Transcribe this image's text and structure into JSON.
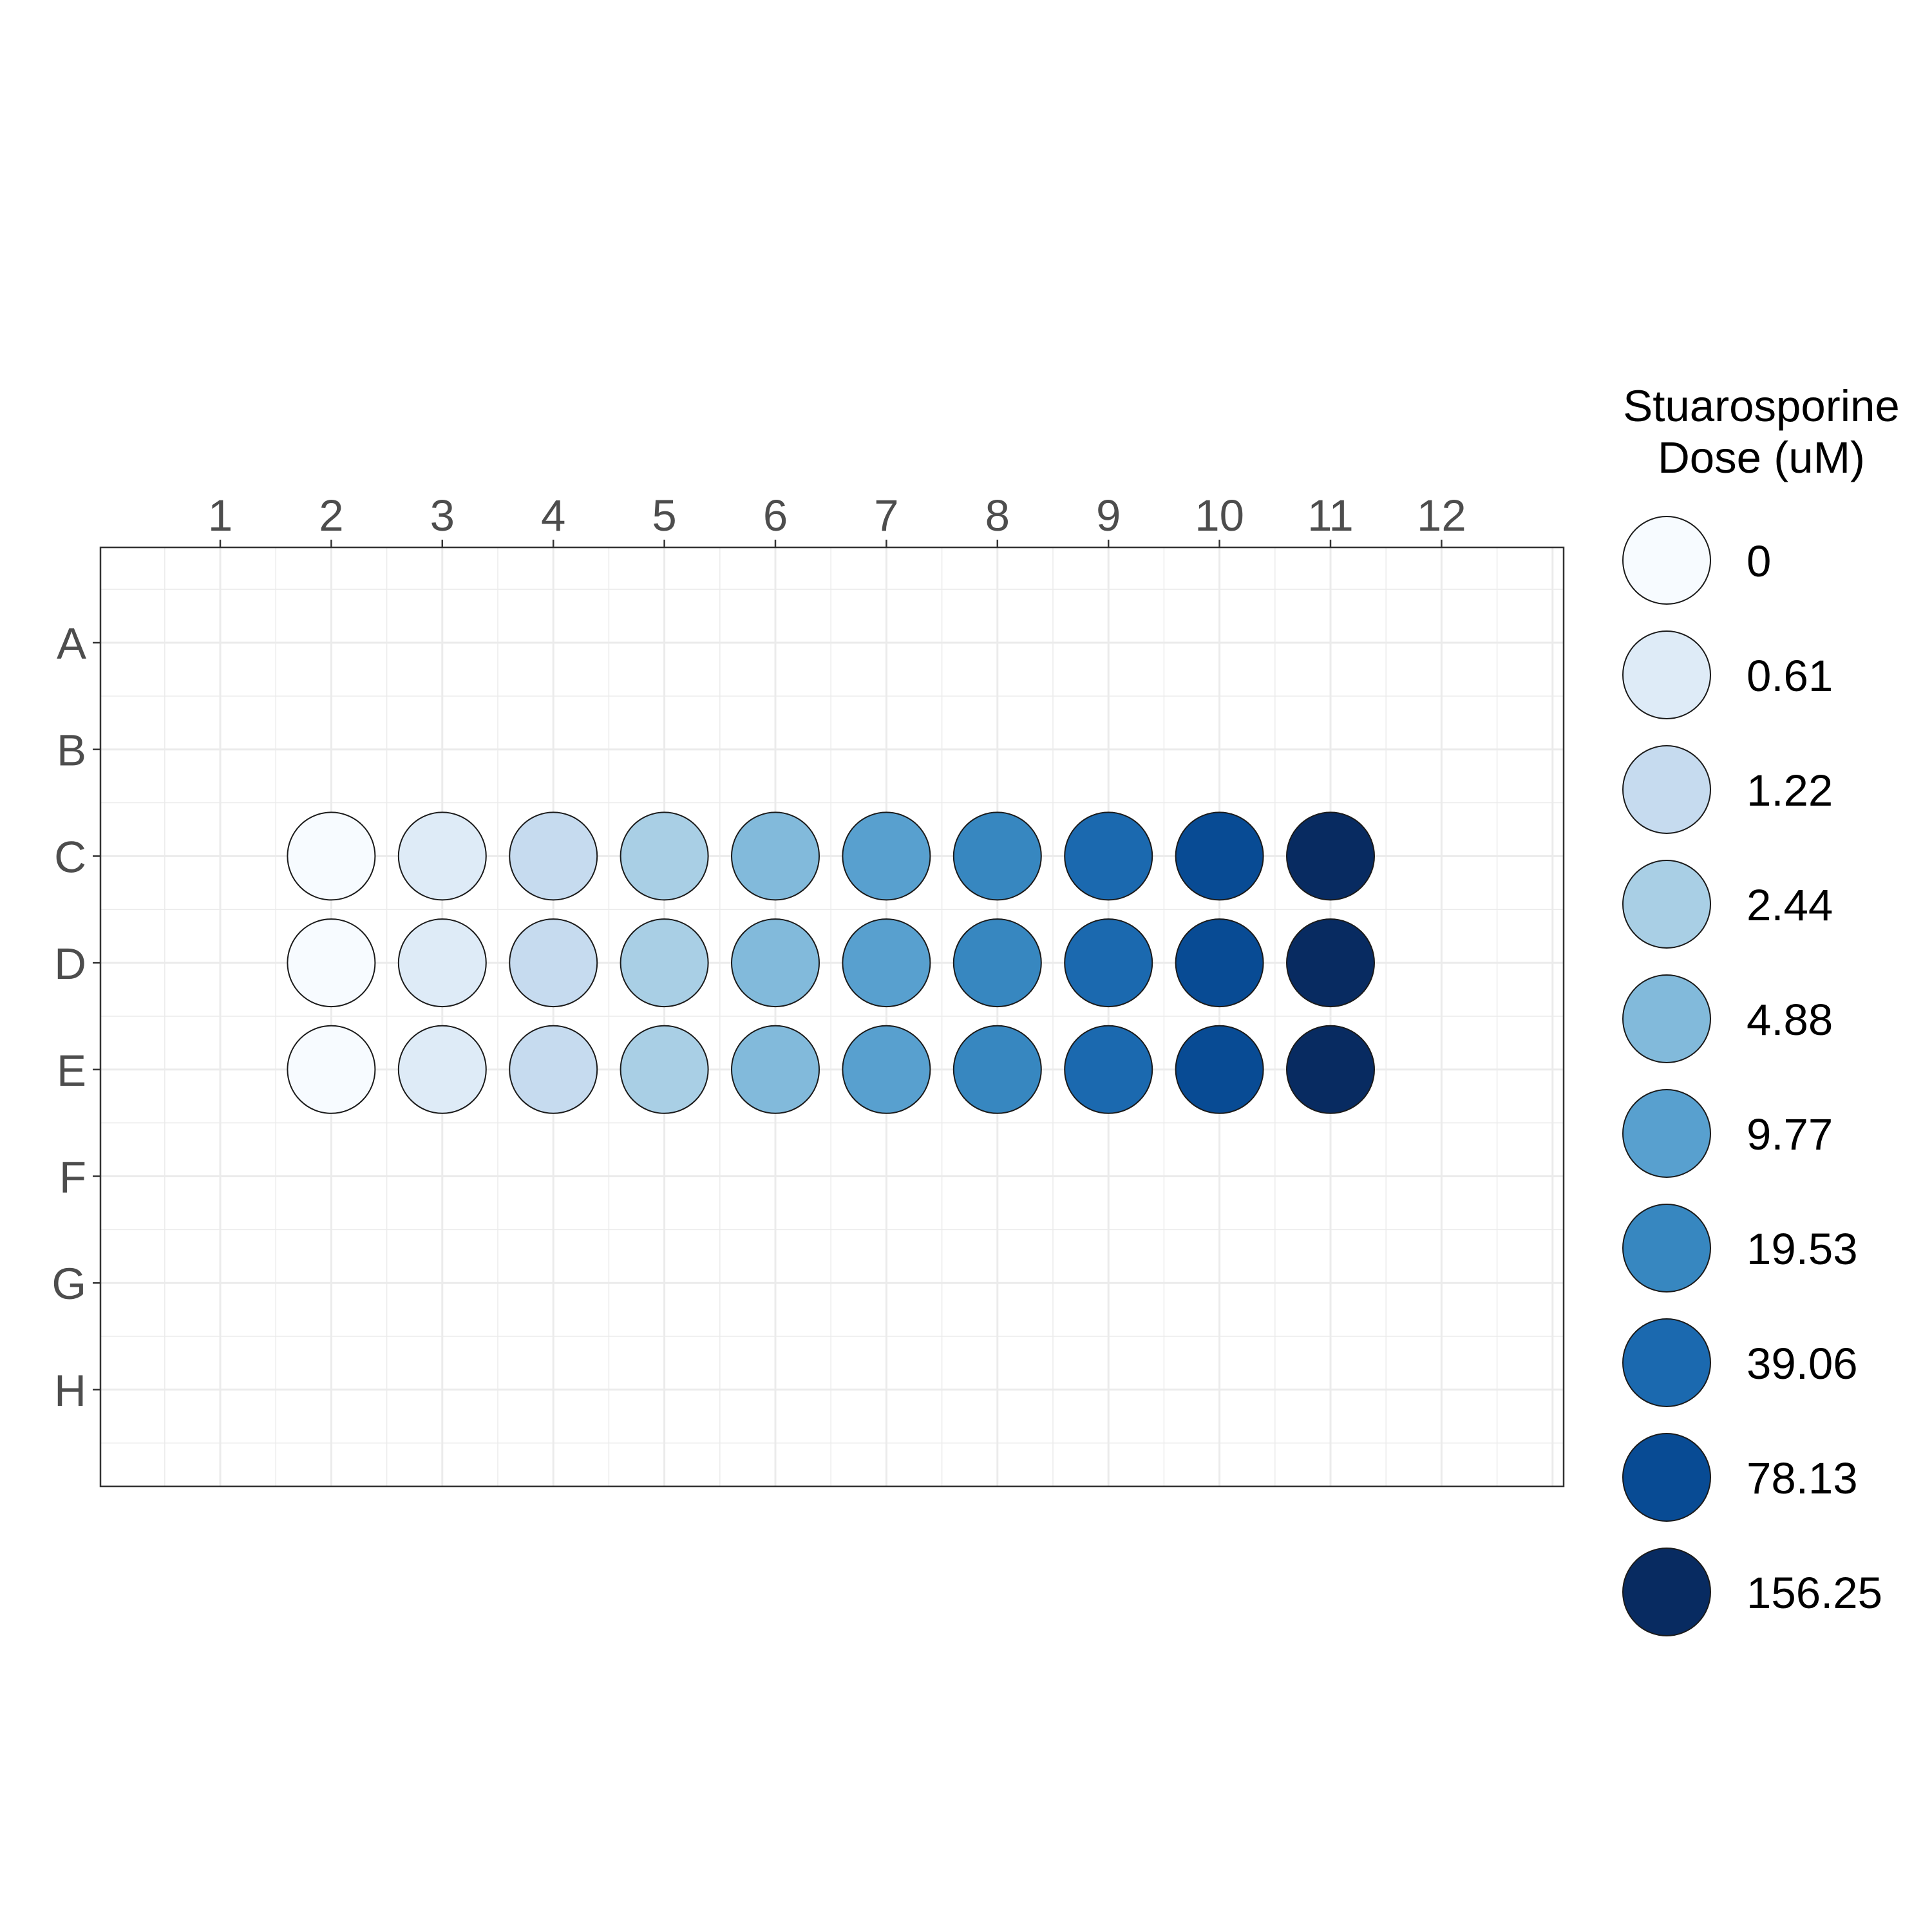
{
  "chart_data": {
    "type": "scatter",
    "title": "",
    "xlabel": "",
    "ylabel": "",
    "x_categories": [
      "1",
      "2",
      "3",
      "4",
      "5",
      "6",
      "7",
      "8",
      "9",
      "10",
      "11",
      "12"
    ],
    "y_categories": [
      "A",
      "B",
      "C",
      "D",
      "E",
      "F",
      "G",
      "H"
    ],
    "x_axis_position": "top",
    "y_axis_reversed": true,
    "grid": true,
    "legend": {
      "title_lines": [
        "Stuarosporine",
        "Dose (uM)"
      ],
      "placement": "right",
      "entries": [
        {
          "label": "0",
          "value": 0,
          "color": "#f7fbff"
        },
        {
          "label": "0.61",
          "value": 0.61,
          "color": "#deebf7"
        },
        {
          "label": "1.22",
          "value": 1.22,
          "color": "#c6dbef"
        },
        {
          "label": "2.44",
          "value": 2.44,
          "color": "#a9cfe5"
        },
        {
          "label": "4.88",
          "value": 4.88,
          "color": "#82badb"
        },
        {
          "label": "9.77",
          "value": 9.77,
          "color": "#58a0cf"
        },
        {
          "label": "19.53",
          "value": 19.53,
          "color": "#3787c0"
        },
        {
          "label": "39.06",
          "value": 39.06,
          "color": "#1b69af"
        },
        {
          "label": "78.13",
          "value": 78.13,
          "color": "#084b94"
        },
        {
          "label": "156.25",
          "value": 156.25,
          "color": "#082b61"
        }
      ]
    },
    "points": [
      {
        "col": 2,
        "row": "C",
        "dose": 0
      },
      {
        "col": 3,
        "row": "C",
        "dose": 0.61
      },
      {
        "col": 4,
        "row": "C",
        "dose": 1.22
      },
      {
        "col": 5,
        "row": "C",
        "dose": 2.44
      },
      {
        "col": 6,
        "row": "C",
        "dose": 4.88
      },
      {
        "col": 7,
        "row": "C",
        "dose": 9.77
      },
      {
        "col": 8,
        "row": "C",
        "dose": 19.53
      },
      {
        "col": 9,
        "row": "C",
        "dose": 39.06
      },
      {
        "col": 10,
        "row": "C",
        "dose": 78.13
      },
      {
        "col": 11,
        "row": "C",
        "dose": 156.25
      },
      {
        "col": 2,
        "row": "D",
        "dose": 0
      },
      {
        "col": 3,
        "row": "D",
        "dose": 0.61
      },
      {
        "col": 4,
        "row": "D",
        "dose": 1.22
      },
      {
        "col": 5,
        "row": "D",
        "dose": 2.44
      },
      {
        "col": 6,
        "row": "D",
        "dose": 4.88
      },
      {
        "col": 7,
        "row": "D",
        "dose": 9.77
      },
      {
        "col": 8,
        "row": "D",
        "dose": 19.53
      },
      {
        "col": 9,
        "row": "D",
        "dose": 39.06
      },
      {
        "col": 10,
        "row": "D",
        "dose": 78.13
      },
      {
        "col": 11,
        "row": "D",
        "dose": 156.25
      },
      {
        "col": 2,
        "row": "E",
        "dose": 0
      },
      {
        "col": 3,
        "row": "E",
        "dose": 0.61
      },
      {
        "col": 4,
        "row": "E",
        "dose": 1.22
      },
      {
        "col": 5,
        "row": "E",
        "dose": 2.44
      },
      {
        "col": 6,
        "row": "E",
        "dose": 4.88
      },
      {
        "col": 7,
        "row": "E",
        "dose": 9.77
      },
      {
        "col": 8,
        "row": "E",
        "dose": 19.53
      },
      {
        "col": 9,
        "row": "E",
        "dose": 39.06
      },
      {
        "col": 10,
        "row": "E",
        "dose": 78.13
      },
      {
        "col": 11,
        "row": "E",
        "dose": 156.25
      }
    ]
  }
}
